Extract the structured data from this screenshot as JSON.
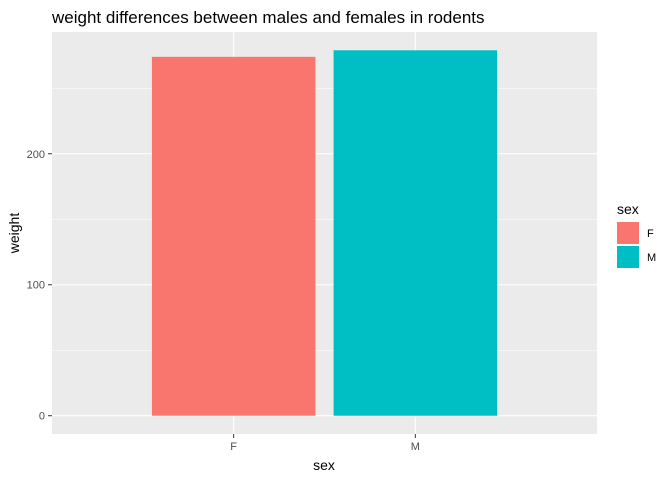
{
  "chart_data": {
    "type": "bar",
    "title": "weight differences between males and females in rodents",
    "xlabel": "sex",
    "ylabel": "weight",
    "categories": [
      "F",
      "M"
    ],
    "values": [
      274,
      279
    ],
    "colors": [
      "#F8766D",
      "#00BFC4"
    ],
    "ylim": [
      -13.95,
      292.95
    ],
    "yticks": [
      0,
      100,
      200
    ],
    "grid": true,
    "panel_background": "#EBEBEB",
    "legend": {
      "title": "sex",
      "entries": [
        "F",
        "M"
      ],
      "position": "right"
    }
  }
}
